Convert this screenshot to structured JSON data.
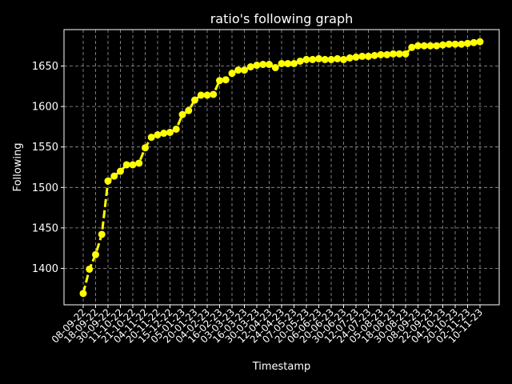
{
  "chart_data": {
    "type": "line",
    "title": "ratio's following graph",
    "xlabel": "Timestamp",
    "ylabel": "Following",
    "ylim": [
      1355,
      1695
    ],
    "yticks": [
      1400,
      1450,
      1500,
      1550,
      1600,
      1650
    ],
    "grid": true,
    "x_tick_labels": [
      "08-09-22",
      "18-09-22",
      "30-09-22",
      "11-10-22",
      "21-10-22",
      "04-11-22",
      "20-11-22",
      "15-12-22",
      "05-01-23",
      "20-01-23",
      "04-02-23",
      "16-02-23",
      "03-03-23",
      "16-03-23",
      "30-03-23",
      "12-04-23",
      "24-04-23",
      "07-05-23",
      "20-05-23",
      "06-06-23",
      "20-06-23",
      "30-06-23",
      "12-07-23",
      "24-07-23",
      "05-08-23",
      "18-08-23",
      "30-08-23",
      "08-09-23",
      "22-09-23",
      "04-10-23",
      "20-10-23",
      "02-11-23",
      "10-11-23"
    ],
    "series": [
      {
        "color": "#ffff00",
        "line_style": "dashed",
        "marker": "circle",
        "values": [
          1369,
          1399,
          1417,
          1442,
          1508,
          1514,
          1520,
          1528,
          1528,
          1530,
          1549,
          1562,
          1565,
          1567,
          1568,
          1572,
          1590,
          1595,
          1608,
          1614,
          1614,
          1615,
          1632,
          1633,
          1641,
          1645,
          1645,
          1649,
          1651,
          1652,
          1652,
          1648,
          1653,
          1653,
          1653,
          1656,
          1658,
          1658,
          1659,
          1658,
          1658,
          1659,
          1658,
          1660,
          1661,
          1662,
          1662,
          1663,
          1664,
          1664,
          1665,
          1665,
          1665,
          1673,
          1675,
          1675,
          1675,
          1675,
          1676,
          1677,
          1677,
          1677,
          1678,
          1679,
          1680
        ]
      }
    ]
  }
}
